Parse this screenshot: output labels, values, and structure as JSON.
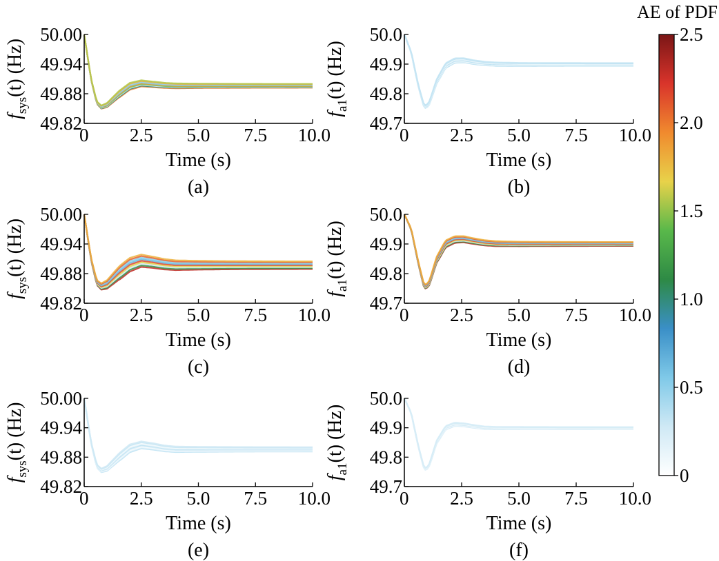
{
  "colorbar": {
    "label": "AE of PDF",
    "range": [
      0,
      2.5
    ],
    "ticks": [
      "0",
      "0.5",
      "1.0",
      "1.5",
      "2.0",
      "2.5"
    ],
    "stops": [
      "#ffffff",
      "#cfe9f5",
      "#7fc9e8",
      "#3a8fc7",
      "#2e8a45",
      "#59b84a",
      "#e8d24a",
      "#f08a2e",
      "#d9342b",
      "#7a1616"
    ]
  },
  "chart_data": [
    {
      "id": "a",
      "type": "line",
      "caption": "(a)",
      "ylabel_main": "f",
      "ylabel_sub": "sys",
      "ylabel_rest": "(t) (Hz)",
      "xlabel": "Time (s)",
      "xlim": [
        0,
        10
      ],
      "ylim": [
        49.82,
        50.0
      ],
      "xticks": [
        "0",
        "2.5",
        "5.0",
        "7.5",
        "10.0"
      ],
      "yticks": [
        "49.82",
        "49.88",
        "49.94",
        "50.00"
      ],
      "curve": {
        "x": [
          0,
          0.3,
          0.55,
          0.75,
          1.0,
          1.5,
          2.0,
          2.5,
          3.0,
          3.5,
          4.0,
          5.0,
          6.0,
          8.0,
          10.0
        ],
        "y": [
          50.0,
          49.91,
          49.862,
          49.853,
          49.857,
          49.878,
          49.895,
          49.901,
          49.899,
          49.897,
          49.896,
          49.896,
          49.896,
          49.896,
          49.896
        ]
      },
      "band": 0.007,
      "color_ae": 2.0
    },
    {
      "id": "b",
      "type": "line",
      "caption": "(b)",
      "ylabel_main": "f",
      "ylabel_sub": "a1",
      "ylabel_rest": "(t) (Hz)",
      "xlabel": "Time (s)",
      "xlim": [
        0,
        10
      ],
      "ylim": [
        49.7,
        50.0
      ],
      "xticks": [
        "0",
        "2.5",
        "5.0",
        "7.5",
        "10.0"
      ],
      "yticks": [
        "49.7",
        "49.8",
        "49.9",
        "50.0"
      ],
      "curve": {
        "x": [
          0,
          0.3,
          0.6,
          0.85,
          0.95,
          1.1,
          1.4,
          1.8,
          2.2,
          2.6,
          3.0,
          3.5,
          4.0,
          5.0,
          6.0,
          8.0,
          10.0
        ],
        "y": [
          50.0,
          49.94,
          49.83,
          49.76,
          49.755,
          49.77,
          49.84,
          49.895,
          49.912,
          49.913,
          49.907,
          49.902,
          49.9,
          49.899,
          49.899,
          49.899,
          49.899
        ]
      },
      "band": 0.008,
      "color_ae": 0.4
    },
    {
      "id": "c",
      "type": "line",
      "caption": "(c)",
      "ylabel_main": "f",
      "ylabel_sub": "sys",
      "ylabel_rest": "(t) (Hz)",
      "xlabel": "Time (s)",
      "xlim": [
        0,
        10
      ],
      "ylim": [
        49.82,
        50.0
      ],
      "xticks": [
        "0",
        "2.5",
        "5.0",
        "7.5",
        "10.0"
      ],
      "yticks": [
        "49.82",
        "49.88",
        "49.94",
        "50.00"
      ],
      "curve": {
        "x": [
          0,
          0.3,
          0.55,
          0.75,
          1.0,
          1.5,
          2.0,
          2.5,
          3.0,
          3.5,
          4.0,
          5.0,
          6.0,
          8.0,
          10.0
        ],
        "y": [
          50.0,
          49.91,
          49.862,
          49.854,
          49.858,
          49.88,
          49.898,
          49.906,
          49.903,
          49.899,
          49.897,
          49.897,
          49.897,
          49.897,
          49.897
        ]
      },
      "band": 0.014,
      "color_ae": 2.3
    },
    {
      "id": "d",
      "type": "line",
      "caption": "(d)",
      "ylabel_main": "f",
      "ylabel_sub": "a1",
      "ylabel_rest": "(t) (Hz)",
      "xlabel": "Time (s)",
      "xlim": [
        0,
        10
      ],
      "ylim": [
        49.7,
        50.0
      ],
      "xticks": [
        "0",
        "2.5",
        "5.0",
        "7.5",
        "10.0"
      ],
      "yticks": [
        "49.7",
        "49.8",
        "49.9",
        "50.0"
      ],
      "curve": {
        "x": [
          0,
          0.3,
          0.6,
          0.85,
          0.95,
          1.1,
          1.4,
          1.8,
          2.2,
          2.6,
          3.0,
          3.5,
          4.0,
          5.0,
          6.0,
          8.0,
          10.0
        ],
        "y": [
          50.0,
          49.95,
          49.84,
          49.76,
          49.755,
          49.77,
          49.845,
          49.9,
          49.915,
          49.916,
          49.91,
          49.904,
          49.901,
          49.9,
          49.9,
          49.9,
          49.9
        ]
      },
      "band": 0.012,
      "color_ae": 2.3
    },
    {
      "id": "e",
      "type": "line",
      "caption": "(e)",
      "ylabel_main": "f",
      "ylabel_sub": "sys",
      "ylabel_rest": "(t) (Hz)",
      "xlabel": "Time (s)",
      "xlim": [
        0,
        10
      ],
      "ylim": [
        49.82,
        50.0
      ],
      "xticks": [
        "0",
        "2.5",
        "5.0",
        "7.5",
        "10.0"
      ],
      "yticks": [
        "49.82",
        "49.88",
        "49.94",
        "50.00"
      ],
      "curve": {
        "x": [
          0,
          0.3,
          0.55,
          0.75,
          1.0,
          1.5,
          2.0,
          2.5,
          3.0,
          3.5,
          4.0,
          5.0,
          6.0,
          8.0,
          10.0
        ],
        "y": [
          50.0,
          49.91,
          49.862,
          49.853,
          49.857,
          49.879,
          49.898,
          49.905,
          49.902,
          49.898,
          49.896,
          49.896,
          49.896,
          49.896,
          49.896
        ]
      },
      "band": 0.008,
      "color_ae": 0.35
    },
    {
      "id": "f",
      "type": "line",
      "caption": "(f)",
      "ylabel_main": "f",
      "ylabel_sub": "a1",
      "ylabel_rest": "(t) (Hz)",
      "xlabel": "Time (s)",
      "xlim": [
        0,
        10
      ],
      "ylim": [
        49.7,
        50.0
      ],
      "xticks": [
        "0",
        "2.5",
        "5.0",
        "7.5",
        "10.0"
      ],
      "yticks": [
        "49.7",
        "49.8",
        "49.9",
        "50.0"
      ],
      "curve": {
        "x": [
          0,
          0.3,
          0.6,
          0.85,
          0.95,
          1.1,
          1.4,
          1.8,
          2.2,
          2.6,
          3.0,
          3.5,
          4.0,
          5.0,
          6.0,
          8.0,
          10.0
        ],
        "y": [
          50.0,
          49.95,
          49.84,
          49.765,
          49.758,
          49.775,
          49.85,
          49.9,
          49.912,
          49.91,
          49.905,
          49.9,
          49.899,
          49.899,
          49.899,
          49.899,
          49.899
        ]
      },
      "band": 0.006,
      "color_ae": 0.3
    }
  ]
}
